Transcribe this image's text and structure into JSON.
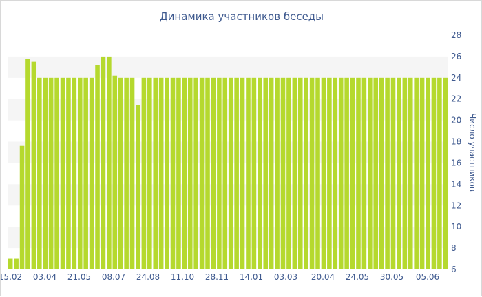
{
  "chart_data": {
    "type": "bar",
    "title": "Динамика участников беседы",
    "xlabel": "",
    "ylabel": "Число участников",
    "ylim": [
      6,
      28
    ],
    "y_ticks": [
      6,
      8,
      10,
      12,
      14,
      16,
      18,
      20,
      22,
      24,
      26,
      28
    ],
    "x_tick_labels": [
      "15.02",
      "03.04",
      "21.05",
      "08.07",
      "24.08",
      "11.10",
      "28.11",
      "14.01",
      "03.03",
      "20.04",
      "24.05",
      "30.05",
      "05.06"
    ],
    "values": [
      7,
      7,
      17.6,
      25.8,
      25.5,
      24,
      24,
      24,
      24,
      24,
      24,
      24,
      24,
      24,
      24,
      25.2,
      26,
      26,
      24.2,
      24,
      24,
      24,
      21.4,
      24,
      24,
      24,
      24,
      24,
      24,
      24,
      24,
      24,
      24,
      24,
      24,
      24,
      24,
      24,
      24,
      24,
      24,
      24,
      24,
      24,
      24,
      24,
      24,
      24,
      24,
      24,
      24,
      24,
      24,
      24,
      24,
      24,
      24,
      24,
      24,
      24,
      24,
      24,
      24,
      24,
      24,
      24,
      24,
      24,
      24,
      24,
      24,
      24,
      24,
      24,
      24,
      24
    ],
    "bar_color": "#b5d92e",
    "grid": false,
    "band_color": "#f5f5f5",
    "axis_side": "right"
  }
}
